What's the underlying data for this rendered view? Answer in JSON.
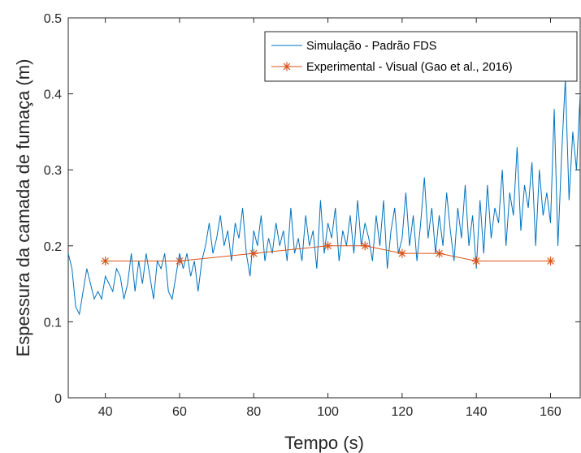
{
  "chart_data": {
    "type": "line",
    "xlabel": "Tempo (s)",
    "ylabel": "Espessura da camada de fumaça (m)",
    "xlim": [
      30,
      168
    ],
    "ylim": [
      0,
      0.5
    ],
    "xticks": [
      40,
      60,
      80,
      100,
      120,
      140,
      160
    ],
    "yticks": [
      0,
      0.1,
      0.2,
      0.3,
      0.4,
      0.5
    ],
    "yticklabels": [
      "0",
      "0.1",
      "0.2",
      "0.3",
      "0.4",
      "0.5"
    ],
    "grid": false,
    "legend_position": "top-right",
    "series": [
      {
        "name": "Simulação - Padrão FDS",
        "color": "#0072BD",
        "marker": "none",
        "x": [
          30,
          31,
          32,
          33,
          34,
          35,
          36,
          37,
          38,
          39,
          40,
          41,
          42,
          43,
          44,
          45,
          46,
          47,
          48,
          49,
          50,
          51,
          52,
          53,
          54,
          55,
          56,
          57,
          58,
          59,
          60,
          61,
          62,
          63,
          64,
          65,
          66,
          67,
          68,
          69,
          70,
          71,
          72,
          73,
          74,
          75,
          76,
          77,
          78,
          79,
          80,
          81,
          82,
          83,
          84,
          85,
          86,
          87,
          88,
          89,
          90,
          91,
          92,
          93,
          94,
          95,
          96,
          97,
          98,
          99,
          100,
          101,
          102,
          103,
          104,
          105,
          106,
          107,
          108,
          109,
          110,
          111,
          112,
          113,
          114,
          115,
          116,
          117,
          118,
          119,
          120,
          121,
          122,
          123,
          124,
          125,
          126,
          127,
          128,
          129,
          130,
          131,
          132,
          133,
          134,
          135,
          136,
          137,
          138,
          139,
          140,
          141,
          142,
          143,
          144,
          145,
          146,
          147,
          148,
          149,
          150,
          151,
          152,
          153,
          154,
          155,
          156,
          157,
          158,
          159,
          160,
          161,
          162,
          163,
          164,
          165,
          166,
          167,
          168
        ],
        "values": [
          0.19,
          0.17,
          0.12,
          0.11,
          0.14,
          0.17,
          0.15,
          0.13,
          0.14,
          0.13,
          0.16,
          0.15,
          0.14,
          0.17,
          0.16,
          0.13,
          0.15,
          0.19,
          0.14,
          0.18,
          0.15,
          0.19,
          0.16,
          0.13,
          0.18,
          0.17,
          0.19,
          0.14,
          0.13,
          0.16,
          0.19,
          0.17,
          0.19,
          0.16,
          0.18,
          0.14,
          0.18,
          0.2,
          0.23,
          0.19,
          0.21,
          0.24,
          0.2,
          0.22,
          0.18,
          0.23,
          0.21,
          0.25,
          0.19,
          0.16,
          0.22,
          0.2,
          0.24,
          0.18,
          0.21,
          0.19,
          0.23,
          0.2,
          0.22,
          0.18,
          0.25,
          0.19,
          0.21,
          0.18,
          0.24,
          0.2,
          0.22,
          0.17,
          0.26,
          0.19,
          0.23,
          0.21,
          0.25,
          0.18,
          0.22,
          0.2,
          0.24,
          0.19,
          0.26,
          0.2,
          0.23,
          0.21,
          0.18,
          0.24,
          0.2,
          0.26,
          0.17,
          0.22,
          0.25,
          0.19,
          0.21,
          0.27,
          0.2,
          0.24,
          0.18,
          0.23,
          0.29,
          0.21,
          0.25,
          0.19,
          0.24,
          0.2,
          0.27,
          0.22,
          0.18,
          0.25,
          0.21,
          0.28,
          0.2,
          0.24,
          0.17,
          0.26,
          0.19,
          0.28,
          0.21,
          0.25,
          0.23,
          0.3,
          0.2,
          0.27,
          0.24,
          0.33,
          0.22,
          0.28,
          0.25,
          0.31,
          0.2,
          0.3,
          0.24,
          0.27,
          0.23,
          0.38,
          0.2,
          0.32,
          0.42,
          0.26,
          0.35,
          0.3,
          0.4
        ]
      },
      {
        "name": "Experimental - Visual (Gao et al., 2016)",
        "color": "#D95319",
        "marker": "asterisk",
        "x": [
          40,
          60,
          80,
          100,
          110,
          120,
          130,
          140,
          160
        ],
        "values": [
          0.18,
          0.18,
          0.19,
          0.2,
          0.2,
          0.19,
          0.19,
          0.18,
          0.18
        ]
      }
    ]
  }
}
